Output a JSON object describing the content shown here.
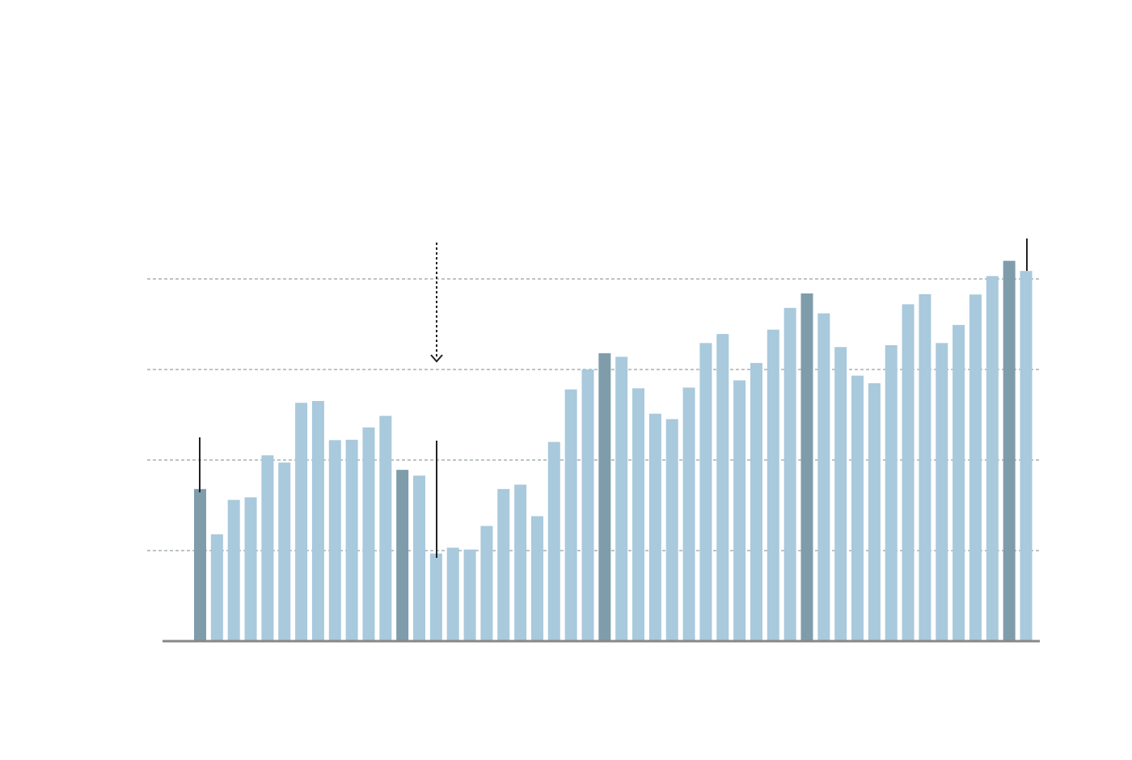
{
  "chart_data": {
    "type": "bar",
    "values": [
      4.2,
      2.95,
      3.9,
      3.97,
      5.13,
      4.93,
      6.58,
      6.63,
      5.55,
      5.56,
      5.9,
      6.22,
      4.73,
      4.57,
      2.42,
      2.58,
      2.53,
      3.18,
      4.2,
      4.32,
      3.45,
      5.5,
      6.95,
      7.5,
      7.95,
      7.85,
      6.98,
      6.28,
      6.13,
      7.0,
      8.23,
      8.48,
      7.2,
      7.68,
      8.6,
      9.2,
      9.6,
      9.05,
      8.12,
      7.33,
      7.12,
      8.17,
      9.3,
      9.58,
      8.23,
      8.73,
      9.57,
      10.08,
      10.5,
      10.22
    ],
    "highlighted_bars": [
      0,
      12,
      24,
      36,
      48
    ],
    "ylim": [
      0,
      12
    ],
    "y_gridlines": [
      2.5,
      5,
      7.5,
      10
    ],
    "colors": {
      "bar": "#a9c9dc",
      "highlight": "#7f9cab",
      "axis": "#888888",
      "grid": "#7a8a90",
      "annotation": "#222222"
    }
  }
}
